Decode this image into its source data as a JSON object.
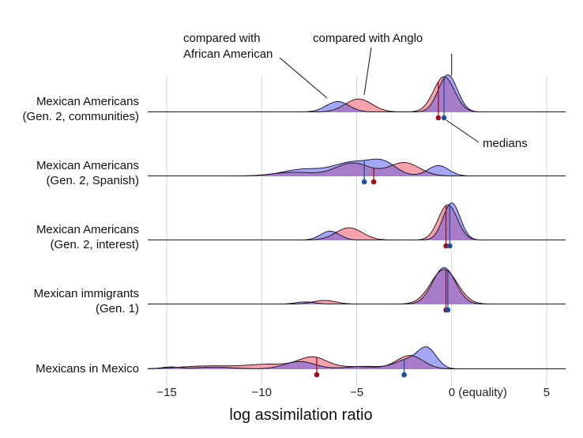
{
  "chart_data": {
    "type": "ridgeline",
    "xlabel": "log assimilation ratio",
    "xlim": [
      -16,
      6
    ],
    "x_ticks": [
      {
        "value": -15,
        "label": "−15"
      },
      {
        "value": -10,
        "label": "−10"
      },
      {
        "value": -5,
        "label": "−5"
      },
      {
        "value": 0,
        "label": "0 (equality)"
      },
      {
        "value": 5,
        "label": "5"
      }
    ],
    "grid": true,
    "colors": {
      "anglo": "#f4a3ac",
      "african_american": "#a4a7f6",
      "overlap": "#a77cc9",
      "median_anglo": "#990f1a",
      "median_african_american": "#1d4f9e",
      "grid": "#d5d5d5"
    },
    "annotations": {
      "african_american": [
        "compared with",
        "African American"
      ],
      "anglo": "compared with Anglo",
      "medians": "medians"
    },
    "rows": [
      {
        "label": [
          "Mexican Americans",
          "(Gen. 2, communities)"
        ],
        "anglo": {
          "median": -0.7,
          "components": [
            [
              -4.9,
              0.7,
              0.35
            ],
            [
              -0.4,
              0.55,
              0.95
            ]
          ]
        },
        "african_american": {
          "median": -0.4,
          "components": [
            [
              -6.0,
              0.6,
              0.28
            ],
            [
              -0.2,
              0.5,
              1.0
            ]
          ]
        }
      },
      {
        "label": [
          "Mexican Americans",
          "(Gen. 2, Spanish)"
        ],
        "anglo": {
          "median": -4.1,
          "components": [
            [
              -8.3,
              1.1,
              0.1
            ],
            [
              -5.2,
              0.9,
              0.35
            ],
            [
              -2.5,
              0.8,
              0.36
            ]
          ]
        },
        "african_american": {
          "median": -4.6,
          "components": [
            [
              -7.8,
              1.1,
              0.18
            ],
            [
              -5.2,
              1.0,
              0.36
            ],
            [
              -3.6,
              0.7,
              0.33
            ],
            [
              -0.7,
              0.55,
              0.28
            ]
          ]
        }
      },
      {
        "label": [
          "Mexican Americans",
          "(Gen. 2, interest)"
        ],
        "anglo": {
          "median": -0.3,
          "components": [
            [
              -5.4,
              0.7,
              0.33
            ],
            [
              -0.2,
              0.5,
              0.95
            ]
          ]
        },
        "african_american": {
          "median": -0.1,
          "components": [
            [
              -6.4,
              0.5,
              0.24
            ],
            [
              0.0,
              0.45,
              1.0
            ]
          ]
        }
      },
      {
        "label": [
          "Mexican immigrants",
          "(Gen. 1)"
        ],
        "anglo": {
          "median": -0.3,
          "components": [
            [
              -6.7,
              0.6,
              0.1
            ],
            [
              -0.4,
              0.7,
              0.93
            ]
          ]
        },
        "african_american": {
          "median": -0.2,
          "components": [
            [
              -7.7,
              0.5,
              0.06
            ],
            [
              -0.4,
              0.6,
              0.98
            ]
          ]
        }
      },
      {
        "label": [
          "Mexicans in Mexico",
          ""
        ],
        "anglo": {
          "median": -7.1,
          "components": [
            [
              -12.8,
              1.5,
              0.08
            ],
            [
              -9.5,
              1.2,
              0.12
            ],
            [
              -7.3,
              0.75,
              0.3
            ],
            [
              -5.0,
              1.0,
              0.06
            ],
            [
              -2.2,
              0.7,
              0.36
            ]
          ]
        },
        "african_american": {
          "median": -2.5,
          "components": [
            [
              -14.8,
              0.5,
              0.05
            ],
            [
              -12.5,
              1.0,
              0.05
            ],
            [
              -8.0,
              0.8,
              0.2
            ],
            [
              -4.5,
              1.0,
              0.07
            ],
            [
              -2.4,
              0.6,
              0.22
            ],
            [
              -1.3,
              0.5,
              0.55
            ]
          ]
        }
      }
    ]
  }
}
